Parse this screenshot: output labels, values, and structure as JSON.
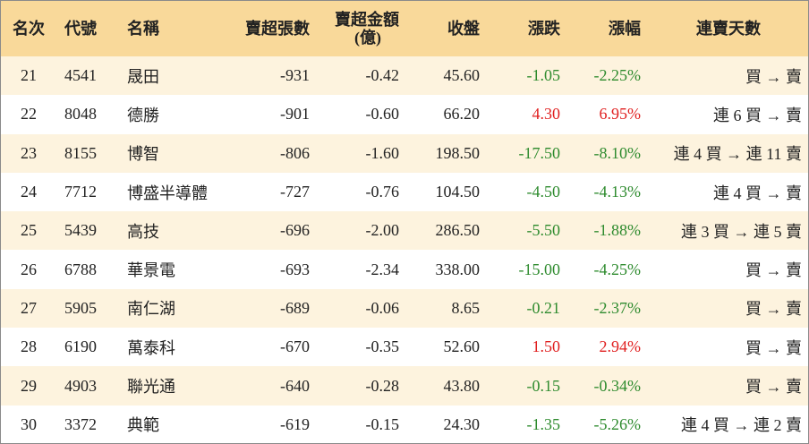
{
  "headers": {
    "rank": "名次",
    "code": "代號",
    "name": "名稱",
    "net_sell_lots": "賣超張數",
    "net_sell_amount_line1": "賣超金額",
    "net_sell_amount_line2": "(億)",
    "close": "收盤",
    "change": "漲跌",
    "change_pct": "漲幅",
    "streak": "連賣天數"
  },
  "rows": [
    {
      "rank": "21",
      "code": "4541",
      "name": "晟田",
      "lots": "-931",
      "amount": "-0.42",
      "close": "45.60",
      "change": "-1.05",
      "pct": "-2.25%",
      "dir": "down",
      "streak": "買 → 賣"
    },
    {
      "rank": "22",
      "code": "8048",
      "name": "德勝",
      "lots": "-901",
      "amount": "-0.60",
      "close": "66.20",
      "change": "4.30",
      "pct": "6.95%",
      "dir": "up",
      "streak": "連 6 買 → 賣"
    },
    {
      "rank": "23",
      "code": "8155",
      "name": "博智",
      "lots": "-806",
      "amount": "-1.60",
      "close": "198.50",
      "change": "-17.50",
      "pct": "-8.10%",
      "dir": "down",
      "streak": "連 4 買 → 連 11 賣"
    },
    {
      "rank": "24",
      "code": "7712",
      "name": "博盛半導體",
      "lots": "-727",
      "amount": "-0.76",
      "close": "104.50",
      "change": "-4.50",
      "pct": "-4.13%",
      "dir": "down",
      "streak": "連 4 買 → 賣"
    },
    {
      "rank": "25",
      "code": "5439",
      "name": "高技",
      "lots": "-696",
      "amount": "-2.00",
      "close": "286.50",
      "change": "-5.50",
      "pct": "-1.88%",
      "dir": "down",
      "streak": "連 3 買 → 連 5 賣"
    },
    {
      "rank": "26",
      "code": "6788",
      "name": "華景電",
      "lots": "-693",
      "amount": "-2.34",
      "close": "338.00",
      "change": "-15.00",
      "pct": "-4.25%",
      "dir": "down",
      "streak": "買 → 賣"
    },
    {
      "rank": "27",
      "code": "5905",
      "name": "南仁湖",
      "lots": "-689",
      "amount": "-0.06",
      "close": "8.65",
      "change": "-0.21",
      "pct": "-2.37%",
      "dir": "down",
      "streak": "買 → 賣"
    },
    {
      "rank": "28",
      "code": "6190",
      "name": "萬泰科",
      "lots": "-670",
      "amount": "-0.35",
      "close": "52.60",
      "change": "1.50",
      "pct": "2.94%",
      "dir": "up",
      "streak": "買 → 賣"
    },
    {
      "rank": "29",
      "code": "4903",
      "name": "聯光通",
      "lots": "-640",
      "amount": "-0.28",
      "close": "43.80",
      "change": "-0.15",
      "pct": "-0.34%",
      "dir": "down",
      "streak": "買 → 賣"
    },
    {
      "rank": "30",
      "code": "3372",
      "name": "典範",
      "lots": "-619",
      "amount": "-0.15",
      "close": "24.30",
      "change": "-1.35",
      "pct": "-5.26%",
      "dir": "down",
      "streak": "連 4 買 → 連 2 賣"
    }
  ],
  "colors": {
    "header_bg": "#f9d99a",
    "stripe_bg": "#fdf3de",
    "up": "#e02020",
    "down": "#2e8b2e"
  }
}
